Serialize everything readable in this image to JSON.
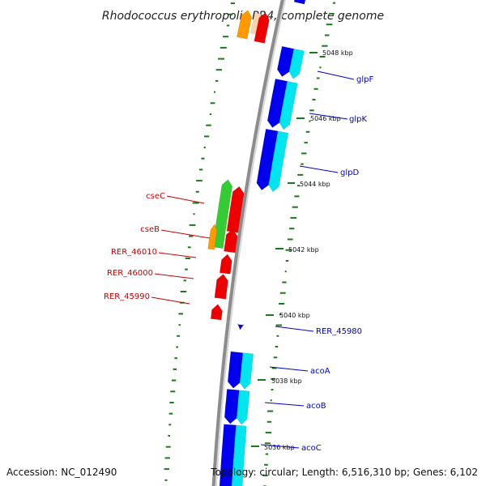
{
  "title": "Rhodococcus erythropolis PR4, complete genome",
  "footer": {
    "accession": "Accession: NC_012490",
    "info": "Topology: circular; Length: 6,516,310 bp; Genes: 6,102"
  },
  "kbp_ticks": [
    {
      "label": "5048 kbp"
    },
    {
      "label": "5046 kbp"
    },
    {
      "label": "5044 kbp"
    },
    {
      "label": "5042 kbp"
    },
    {
      "label": "5040 kbp"
    },
    {
      "label": "5038 kbp"
    },
    {
      "label": "5036 kbp"
    }
  ],
  "right_genes": [
    {
      "label": "glpF"
    },
    {
      "label": "glpK"
    },
    {
      "label": "glpD"
    },
    {
      "label": "RER_45980"
    },
    {
      "label": "acoA"
    },
    {
      "label": "acoB"
    },
    {
      "label": "acoC"
    }
  ],
  "left_genes": [
    {
      "label": "cseC"
    },
    {
      "label": "cseB"
    },
    {
      "label": "RER_46010"
    },
    {
      "label": "RER_46000"
    },
    {
      "label": "RER_45990"
    }
  ],
  "colors": {
    "backbone": "#8c8c8c",
    "forward_cds": "#0000ee",
    "forward_aux": "#00e5ee",
    "reverse_cds": "#ee0000",
    "reverse_aux1": "#33cc33",
    "reverse_aux2": "#ff9900",
    "tick_green": "#1a7a1a",
    "label_blue": "#0000cc",
    "label_red": "#cc0000"
  }
}
